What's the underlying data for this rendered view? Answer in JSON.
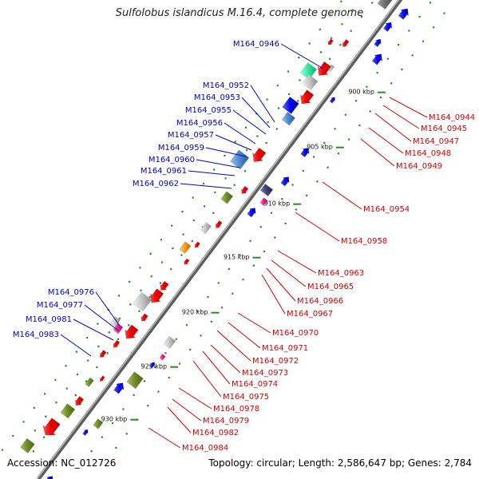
{
  "title": "Sulfolobus islandicus M.16.4, complete genome",
  "footer": {
    "accession": "Accession: NC_012726",
    "summary": "Topology: circular; Length: 2,586,647 bp; Genes: 2,784"
  },
  "colors": {
    "backbone": "#808080",
    "plus_label": "#0000cc",
    "minus_label": "#d40000",
    "tick": "#2a8a2a"
  },
  "ticks": [
    "900 kbp",
    "905 kbp",
    "910 kbp",
    "915 kbp",
    "920 kbp",
    "925 kbp",
    "930 kbp"
  ],
  "plus_labels": [
    "M164_0946",
    "M164_0952",
    "M164_0953",
    "M164_0955",
    "M164_0956",
    "M164_0957",
    "M164_0959",
    "M164_0960",
    "M164_0961",
    "M164_0962",
    "M164_0976",
    "M164_0977",
    "M164_0981",
    "M164_0983"
  ],
  "minus_labels": [
    "M164_0944",
    "M164_0945",
    "M164_0947",
    "M164_0948",
    "M164_0949",
    "M164_0954",
    "M164_0958",
    "M164_0963",
    "M164_0965",
    "M164_0966",
    "M164_0967",
    "M164_0970",
    "M164_0971",
    "M164_0972",
    "M164_0973",
    "M164_0974",
    "M164_0975",
    "M164_0978",
    "M164_0979",
    "M164_0982",
    "M164_0984"
  ]
}
